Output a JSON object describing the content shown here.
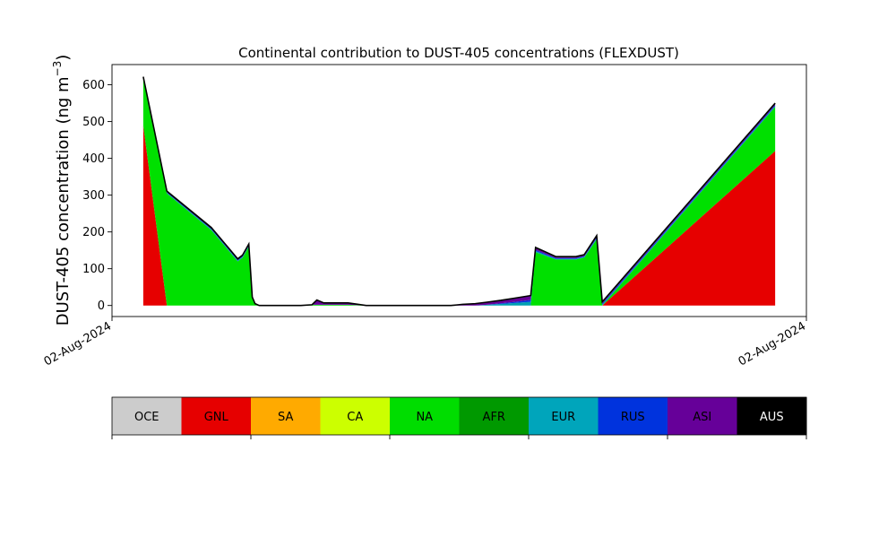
{
  "chart_data": {
    "type": "area",
    "stacked": true,
    "title": "Continental contribution to DUST-405 concentrations (FLEXDUST)",
    "ylabel": "DUST-405 concentration (ng m",
    "ylabel_exponent": "−3",
    "ylabel_close": ")",
    "ylim": [
      -30,
      655
    ],
    "yticks": [
      0,
      100,
      200,
      300,
      400,
      500,
      600
    ],
    "xlim": [
      0,
      100
    ],
    "xticks": [
      {
        "x": 0,
        "label": "02-Aug-2024"
      },
      {
        "x": 100,
        "label": "02-Aug-2024"
      }
    ],
    "grid": false,
    "x": [
      4.5,
      7.9,
      14.3,
      18.1,
      18.8,
      19.7,
      20.2,
      20.6,
      21.2,
      23,
      25,
      27.2,
      28.8,
      29.5,
      30.5,
      34,
      36.6,
      38.8,
      42.4,
      46,
      48.8,
      50.5,
      52.3,
      54,
      56,
      58,
      60.3,
      61,
      63.9,
      66.8,
      68,
      69.8,
      70.6,
      95.5
    ],
    "series": [
      {
        "name": "OCE",
        "color": "#c8c8c8",
        "values": [
          0,
          0,
          0,
          0,
          0,
          0,
          0,
          0,
          0,
          0,
          0,
          0,
          0,
          0,
          0,
          0,
          0,
          0,
          0,
          0,
          0,
          0,
          0,
          0,
          0,
          0,
          0,
          0,
          0,
          0,
          0,
          0,
          0,
          0
        ]
      },
      {
        "name": "GNL",
        "color": "#e60000",
        "values": [
          490,
          0,
          0,
          0,
          0,
          0,
          0,
          0,
          0,
          0,
          0,
          0,
          0,
          0,
          0,
          0,
          0,
          0,
          0,
          0,
          0,
          0,
          0,
          0,
          0,
          0,
          0,
          0,
          0,
          0,
          0,
          0,
          0,
          420
        ]
      },
      {
        "name": "SA",
        "color": "#ffaa00",
        "values": [
          0,
          0,
          0,
          0,
          0,
          0,
          0,
          0,
          0,
          0,
          0,
          0,
          0,
          0,
          0,
          0,
          0,
          0,
          0,
          0,
          0,
          0,
          0,
          0,
          0,
          0,
          0,
          0,
          0,
          0,
          0,
          0,
          0,
          0
        ]
      },
      {
        "name": "CA",
        "color": "#c8ff00",
        "values": [
          0,
          0,
          0,
          0,
          0,
          0,
          0,
          0,
          0,
          0,
          0,
          0,
          0,
          0,
          0,
          0,
          0,
          0,
          0,
          0,
          0,
          0,
          0,
          0,
          0,
          0,
          0,
          0,
          0,
          0,
          0,
          0,
          0,
          0
        ]
      },
      {
        "name": "NA",
        "color": "#00e000",
        "values": [
          130,
          305,
          205,
          120,
          130,
          160,
          20,
          5,
          0,
          0,
          0,
          0,
          2,
          2,
          2,
          2,
          0,
          0,
          0,
          0,
          0,
          0,
          0,
          0,
          0,
          0,
          0,
          145,
          125,
          125,
          130,
          180,
          0,
          120
        ]
      },
      {
        "name": "AFR",
        "color": "#009900",
        "values": [
          0,
          0,
          0,
          0,
          0,
          0,
          0,
          0,
          0,
          0,
          0,
          0,
          0,
          0,
          0,
          0,
          0,
          0,
          0,
          0,
          0,
          0,
          0,
          0,
          0,
          0,
          0,
          0,
          0,
          0,
          0,
          0,
          0,
          0
        ]
      },
      {
        "name": "EUR",
        "color": "#00a0b0",
        "values": [
          0,
          1,
          2,
          2,
          2,
          2,
          1,
          0,
          0,
          0,
          0,
          0,
          0,
          0,
          0,
          0,
          0,
          0,
          0,
          0,
          0,
          0,
          0,
          2,
          4,
          7,
          10,
          3,
          2,
          2,
          2,
          2,
          2,
          2
        ]
      },
      {
        "name": "RUS",
        "color": "#0033dd",
        "values": [
          0,
          2,
          2,
          2,
          2,
          2,
          1,
          0,
          0,
          0,
          0,
          0,
          0,
          0,
          0,
          0,
          0,
          0,
          0,
          0,
          0,
          0,
          0,
          0,
          2,
          3,
          5,
          3,
          2,
          2,
          2,
          3,
          3,
          3
        ]
      },
      {
        "name": "ASI",
        "color": "#660099",
        "values": [
          0,
          0,
          0,
          0,
          0,
          0,
          0,
          0,
          0,
          0,
          0,
          0,
          0,
          13,
          5,
          5,
          0,
          0,
          0,
          0,
          0,
          3,
          5,
          7,
          8,
          10,
          12,
          5,
          2,
          2,
          2,
          2,
          2,
          2
        ]
      },
      {
        "name": "AUS",
        "color": "#000000",
        "values": [
          2,
          3,
          3,
          3,
          3,
          3,
          1,
          0,
          0,
          0,
          0,
          0,
          0,
          0,
          0,
          0,
          0,
          0,
          0,
          0,
          0,
          0,
          0,
          0,
          0,
          0,
          0,
          2,
          2,
          2,
          2,
          3,
          3,
          3
        ]
      }
    ],
    "legend": {
      "placement": "bottom",
      "entries": [
        {
          "label": "OCE",
          "color": "#cccccc",
          "text_color": "#000000"
        },
        {
          "label": "GNL",
          "color": "#e60000",
          "text_color": "#000000"
        },
        {
          "label": "SA",
          "color": "#ffaa00",
          "text_color": "#000000"
        },
        {
          "label": "CA",
          "color": "#ccff00",
          "text_color": "#000000"
        },
        {
          "label": "NA",
          "color": "#00dd00",
          "text_color": "#000000"
        },
        {
          "label": "AFR",
          "color": "#009900",
          "text_color": "#000000"
        },
        {
          "label": "EUR",
          "color": "#00a5bb",
          "text_color": "#000000"
        },
        {
          "label": "RUS",
          "color": "#0033dd",
          "text_color": "#000000"
        },
        {
          "label": "ASI",
          "color": "#660099",
          "text_color": "#000000"
        },
        {
          "label": "AUS",
          "color": "#000000",
          "text_color": "#ffffff"
        }
      ]
    }
  }
}
